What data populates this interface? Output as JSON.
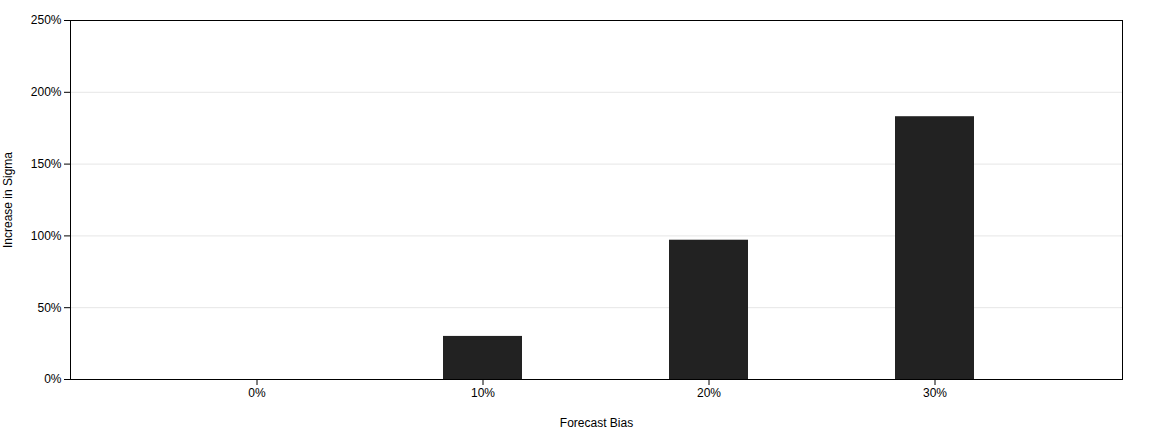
{
  "chart_data": {
    "type": "bar",
    "xlabel": "Forecast Bias",
    "ylabel": "Increase in Sigma",
    "categories": [
      "0%",
      "10%",
      "20%",
      "30%"
    ],
    "values": [
      0,
      30,
      97,
      183
    ],
    "color": "#222222",
    "ylim": [
      0,
      250
    ],
    "yticks": [
      {
        "value": 0,
        "label": "0%"
      },
      {
        "value": 50,
        "label": "50%"
      },
      {
        "value": 100,
        "label": "100%"
      },
      {
        "value": 150,
        "label": "150%"
      },
      {
        "value": 200,
        "label": "200%"
      },
      {
        "value": 250,
        "label": "250%"
      }
    ],
    "grid": true
  }
}
